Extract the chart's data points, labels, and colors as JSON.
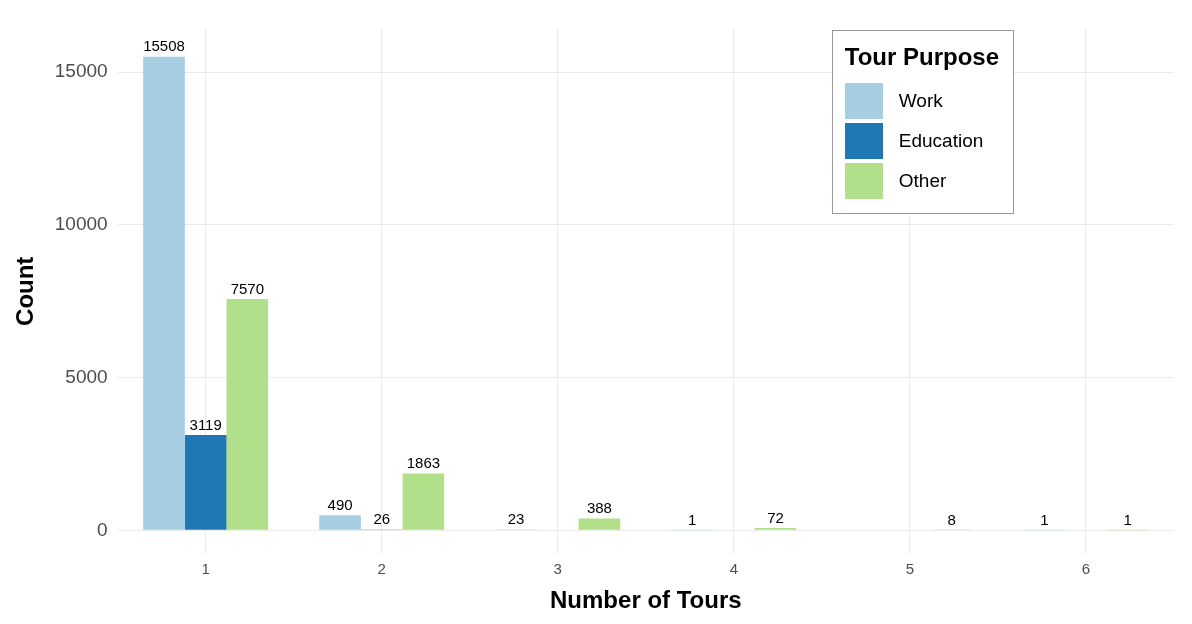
{
  "chart_data": {
    "type": "bar",
    "xlabel": "Number of Tours",
    "ylabel": "Count",
    "legend_title": "Tour Purpose",
    "categories": [
      "1",
      "2",
      "3",
      "4",
      "5",
      "6"
    ],
    "series": [
      {
        "name": "Work",
        "color": "#a6cee3",
        "values": [
          15508,
          490,
          23,
          1,
          null,
          1
        ]
      },
      {
        "name": "Education",
        "color": "#1f78b4",
        "values": [
          3119,
          26,
          null,
          null,
          null,
          null
        ]
      },
      {
        "name": "Other",
        "color": "#b2df8a",
        "values": [
          7570,
          1863,
          388,
          72,
          8,
          1
        ]
      }
    ],
    "ylim": [
      -750,
      16400
    ],
    "yticks": [
      0,
      5000,
      10000,
      15000
    ],
    "grid": true,
    "legend": "top right",
    "data_labels": true
  }
}
